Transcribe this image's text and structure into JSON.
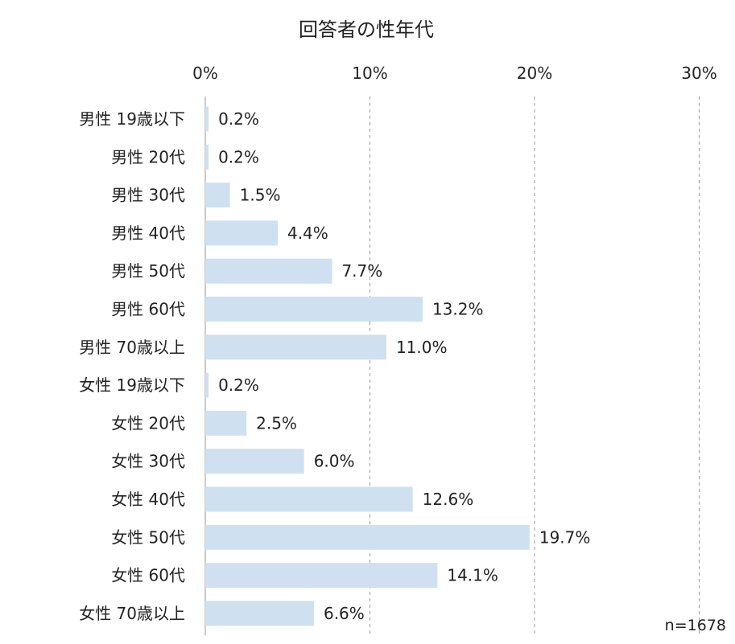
{
  "chart_data": {
    "type": "bar",
    "orientation": "horizontal",
    "title": "回答者の性年代",
    "categories": [
      "男性 19歳以下",
      "男性 20代",
      "男性 30代",
      "男性 40代",
      "男性 50代",
      "男性 60代",
      "男性 70歳以上",
      "女性 19歳以下",
      "女性 20代",
      "女性 30代",
      "女性 40代",
      "女性 50代",
      "女性 60代",
      "女性 70歳以上"
    ],
    "values": [
      0.2,
      0.2,
      1.5,
      4.4,
      7.7,
      13.2,
      11.0,
      0.2,
      2.5,
      6.0,
      12.6,
      19.7,
      14.1,
      6.6
    ],
    "value_labels": [
      "0.2%",
      "0.2%",
      "1.5%",
      "4.4%",
      "7.7%",
      "13.2%",
      "11.0%",
      "0.2%",
      "2.5%",
      "6.0%",
      "12.6%",
      "19.7%",
      "14.1%",
      "6.6%"
    ],
    "x_ticks": [
      0,
      10,
      20,
      30
    ],
    "x_tick_labels": [
      "0%",
      "10%",
      "20%",
      "30%"
    ],
    "xlim": [
      0,
      30
    ],
    "xlabel": "",
    "ylabel": "",
    "grid": true,
    "legend": "none",
    "bar_color": "#cfe0f1",
    "note": "n=1678"
  }
}
